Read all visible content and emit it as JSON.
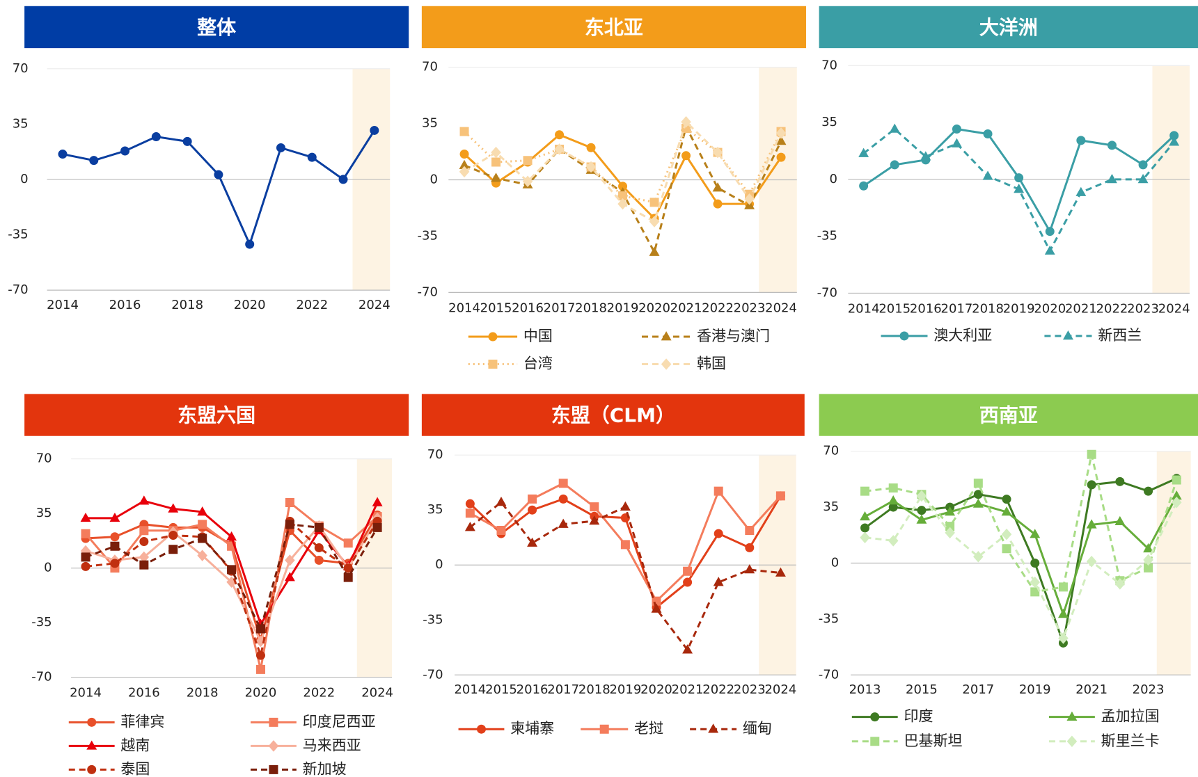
{
  "chart_data": [
    {
      "type": "line",
      "title": "整体",
      "header_color": "#003DA5",
      "color": "#0A3EA0",
      "x": [
        2014,
        2015,
        2016,
        2017,
        2018,
        2019,
        2020,
        2021,
        2022,
        2023,
        2024
      ],
      "values": [
        16,
        12,
        18,
        27,
        24,
        3,
        -41,
        20,
        14,
        0,
        31
      ],
      "xticks": [
        2014,
        2016,
        2018,
        2020,
        2022,
        2024
      ],
      "ylim": [
        -70,
        70
      ],
      "yticks": [
        -70,
        -35,
        0,
        35,
        70
      ],
      "highlight_x": 2024
    },
    {
      "type": "line",
      "title": "东北亚",
      "header_color": "#F39C1A",
      "x": [
        2014,
        2015,
        2016,
        2017,
        2018,
        2019,
        2020,
        2021,
        2022,
        2023,
        2024
      ],
      "xticks": [
        2014,
        2015,
        2016,
        2017,
        2018,
        2019,
        2020,
        2021,
        2022,
        2023,
        2024
      ],
      "ylim": [
        -70,
        70
      ],
      "yticks": [
        -70,
        -35,
        0,
        35,
        70
      ],
      "highlight_x": 2024,
      "series": [
        {
          "name": "中国",
          "color": "#F39C1A",
          "marker": "circle",
          "dash": "solid",
          "values": [
            16,
            -2,
            11,
            28,
            20,
            -4,
            -24,
            15,
            -15,
            -15,
            14
          ]
        },
        {
          "name": "香港与澳门",
          "color": "#B8801A",
          "marker": "triangle",
          "dash": "dashed",
          "values": [
            9,
            1,
            -3,
            19,
            6,
            -8,
            -45,
            33,
            -5,
            -16,
            24
          ]
        },
        {
          "name": "台湾",
          "color": "#F7C27A",
          "marker": "square",
          "dash": "dotted",
          "values": [
            30,
            11,
            12,
            19,
            8,
            -10,
            -14,
            32,
            17,
            -9,
            30
          ]
        },
        {
          "name": "韩国",
          "color": "#F8DCB0",
          "marker": "diamond",
          "dash": "dashed",
          "values": [
            5,
            17,
            -1,
            19,
            8,
            -15,
            -26,
            36,
            17,
            -12,
            29
          ]
        }
      ]
    },
    {
      "type": "line",
      "title": "大洋洲",
      "header_color": "#3A9EA5",
      "x": [
        2014,
        2015,
        2016,
        2017,
        2018,
        2019,
        2020,
        2021,
        2022,
        2023,
        2024
      ],
      "xticks": [
        2014,
        2015,
        2016,
        2017,
        2018,
        2019,
        2020,
        2021,
        2022,
        2023,
        2024
      ],
      "ylim": [
        -70,
        70
      ],
      "yticks": [
        -70,
        -35,
        0,
        35,
        70
      ],
      "highlight_x": 2024,
      "series": [
        {
          "name": "澳大利亚",
          "color": "#3A9EA5",
          "marker": "circle",
          "dash": "solid",
          "values": [
            -4,
            9,
            12,
            31,
            28,
            1,
            -32,
            24,
            21,
            9,
            27
          ]
        },
        {
          "name": "新西兰",
          "color": "#3A9EA5",
          "marker": "triangle",
          "dash": "dashed",
          "values": [
            16,
            31,
            14,
            22,
            2,
            -6,
            -44,
            -8,
            0,
            0,
            23
          ]
        }
      ]
    },
    {
      "type": "line",
      "title": "东盟六国",
      "header_color": "#E3350D",
      "x": [
        2014,
        2015,
        2016,
        2017,
        2018,
        2019,
        2020,
        2021,
        2022,
        2023,
        2024
      ],
      "xticks": [
        2014,
        2016,
        2018,
        2020,
        2022,
        2024
      ],
      "ylim": [
        -70,
        70
      ],
      "yticks": [
        -70,
        -35,
        0,
        35,
        70
      ],
      "highlight_x": 2024,
      "series": [
        {
          "name": "菲律宾",
          "color": "#E8502A",
          "marker": "circle",
          "dash": "solid",
          "values": [
            19,
            20,
            28,
            26,
            26,
            15,
            -46,
            24,
            5,
            3,
            34
          ]
        },
        {
          "name": "印度尼西亚",
          "color": "#F47C5C",
          "marker": "square",
          "dash": "solid",
          "values": [
            22,
            0,
            24,
            24,
            28,
            14,
            -65,
            42,
            27,
            16,
            33
          ]
        },
        {
          "name": "越南",
          "color": "#E8000B",
          "marker": "triangle",
          "dash": "solid",
          "values": [
            32,
            32,
            43,
            38,
            36,
            20,
            -36,
            -6,
            24,
            1,
            42
          ]
        },
        {
          "name": "马来西亚",
          "color": "#F7B09B",
          "marker": "diamond",
          "dash": "solid",
          "values": [
            11,
            5,
            7,
            23,
            8,
            -9,
            -47,
            5,
            27,
            0,
            32
          ]
        },
        {
          "name": "泰国",
          "color": "#C03010",
          "marker": "circle",
          "dash": "dashed",
          "values": [
            1,
            3,
            17,
            21,
            20,
            -2,
            -56,
            30,
            13,
            0,
            30
          ]
        },
        {
          "name": "新加坡",
          "color": "#7A1E0A",
          "marker": "square",
          "dash": "dashed",
          "values": [
            7,
            14,
            2,
            12,
            19,
            -1,
            -39,
            28,
            26,
            -6,
            26
          ]
        }
      ]
    },
    {
      "type": "line",
      "title": "东盟（CLM）",
      "header_color": "#E3350D",
      "x": [
        2014,
        2015,
        2016,
        2017,
        2018,
        2019,
        2020,
        2021,
        2022,
        2023,
        2024
      ],
      "xticks": [
        2014,
        2015,
        2016,
        2017,
        2018,
        2019,
        2020,
        2021,
        2022,
        2023,
        2024
      ],
      "ylim": [
        -70,
        70
      ],
      "yticks": [
        -70,
        -35,
        0,
        35,
        70
      ],
      "highlight_x": 2024,
      "series": [
        {
          "name": "柬埔寨",
          "color": "#E2401A",
          "marker": "circle",
          "dash": "solid",
          "values": [
            39,
            20,
            35,
            42,
            31,
            30,
            -27,
            -11,
            20,
            11,
            44
          ]
        },
        {
          "name": "老挝",
          "color": "#F47C5C",
          "marker": "square",
          "dash": "solid",
          "values": [
            33,
            22,
            42,
            52,
            37,
            13,
            -23,
            -4,
            47,
            22,
            44
          ]
        },
        {
          "name": "缅甸",
          "color": "#A8280C",
          "marker": "triangle",
          "dash": "dashed",
          "values": [
            24,
            40,
            14,
            26,
            28,
            37,
            -28,
            -54,
            -11,
            -3,
            -5
          ]
        }
      ]
    },
    {
      "type": "line",
      "title": "西南亚",
      "header_color": "#8CCB50",
      "x": [
        2013,
        2014,
        2015,
        2016,
        2017,
        2018,
        2019,
        2020,
        2021,
        2022,
        2023,
        2024
      ],
      "xticks": [
        2013,
        2015,
        2017,
        2019,
        2021,
        2023
      ],
      "ylim": [
        -70,
        70
      ],
      "yticks": [
        -70,
        -35,
        0,
        35,
        70
      ],
      "highlight_x": 2024,
      "series": [
        {
          "name": "印度",
          "color": "#3E7A22",
          "marker": "circle",
          "dash": "solid",
          "values": [
            22,
            35,
            33,
            35,
            43,
            40,
            0,
            -50,
            49,
            51,
            45,
            53
          ]
        },
        {
          "name": "孟加拉国",
          "color": "#66AD3A",
          "marker": "triangle",
          "dash": "solid",
          "values": [
            29,
            39,
            27,
            32,
            37,
            32,
            18,
            -32,
            24,
            26,
            9,
            42
          ]
        },
        {
          "name": "巴基斯坦",
          "color": "#A8DC86",
          "marker": "square",
          "dash": "dashed",
          "values": [
            45,
            47,
            43,
            23,
            50,
            9,
            -18,
            -15,
            68,
            -11,
            -3,
            52
          ]
        },
        {
          "name": "斯里兰卡",
          "color": "#D2EDBE",
          "marker": "diamond",
          "dash": "dashed",
          "values": [
            16,
            14,
            42,
            19,
            4,
            18,
            -12,
            -47,
            1,
            -13,
            2,
            38
          ]
        }
      ]
    }
  ]
}
